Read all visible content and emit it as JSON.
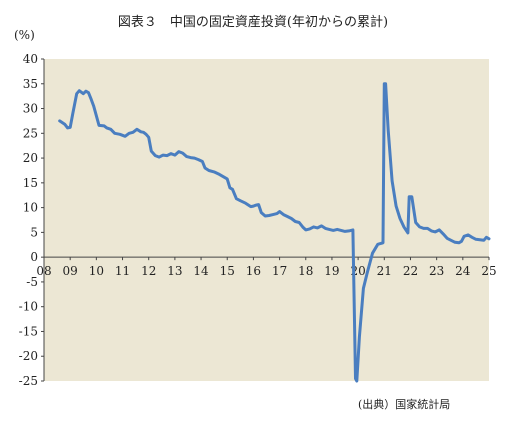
{
  "chart_data": {
    "type": "line",
    "title": "図表３　中国の固定資産投資(年初からの累計)",
    "ylabel": "(%)",
    "source": "(出典）国家統計局",
    "ylim": [
      -25,
      40
    ],
    "xlim": [
      8,
      25
    ],
    "y_ticks": [
      40,
      35,
      30,
      25,
      20,
      15,
      10,
      5,
      0,
      -5,
      -10,
      -15,
      -20,
      -25
    ],
    "x_ticks": [
      {
        "label": "08",
        "value": 8
      },
      {
        "label": "09",
        "value": 9
      },
      {
        "label": "10",
        "value": 10
      },
      {
        "label": "11",
        "value": 11
      },
      {
        "label": "12",
        "value": 12
      },
      {
        "label": "13",
        "value": 13
      },
      {
        "label": "14",
        "value": 14
      },
      {
        "label": "15",
        "value": 15
      },
      {
        "label": "16",
        "value": 16
      },
      {
        "label": "17",
        "value": 17
      },
      {
        "label": "18",
        "value": 18
      },
      {
        "label": "19",
        "value": 19
      },
      {
        "label": "20",
        "value": 20
      },
      {
        "label": "21",
        "value": 21
      },
      {
        "label": "22",
        "value": 22
      },
      {
        "label": "23",
        "value": 23
      },
      {
        "label": "24",
        "value": 24
      },
      {
        "label": "25",
        "value": 25
      }
    ],
    "grid": false,
    "line_color": "#4a7ec0",
    "plot_background": "#ece7d4",
    "series": [
      {
        "x": [
          8.6,
          8.8,
          8.9,
          9.0,
          9.1,
          9.25,
          9.35,
          9.5,
          9.6,
          9.7,
          9.8,
          9.9,
          10.1,
          10.3,
          10.4,
          10.55,
          10.7,
          10.9,
          11.1,
          11.25,
          11.4,
          11.55,
          11.7,
          11.8,
          11.9,
          12.0,
          12.1,
          12.25,
          12.4,
          12.55,
          12.7,
          12.85,
          13.0,
          13.15,
          13.3,
          13.45,
          13.6,
          13.75,
          13.9,
          14.05,
          14.15,
          14.3,
          14.5,
          14.7,
          14.9,
          15.0,
          15.1,
          15.2,
          15.35,
          15.5,
          15.7,
          15.9,
          16.0,
          16.1,
          16.2,
          16.3,
          16.45,
          16.6,
          16.75,
          16.9,
          17.0,
          17.15,
          17.3,
          17.45,
          17.6,
          17.75,
          17.9,
          18.0,
          18.15,
          18.3,
          18.45,
          18.6,
          18.75,
          18.9,
          19.05,
          19.2,
          19.35,
          19.5,
          19.65,
          19.8,
          19.9,
          19.95,
          20.05,
          20.2,
          20.35,
          20.55,
          20.75,
          20.95,
          21.0,
          21.05,
          21.15,
          21.3,
          21.45,
          21.6,
          21.75,
          21.9,
          21.95,
          22.05,
          22.2,
          22.35,
          22.5,
          22.65,
          22.8,
          22.95,
          23.1,
          23.25,
          23.4,
          23.55,
          23.7,
          23.85,
          23.95,
          24.05,
          24.2,
          24.35,
          24.5,
          24.65,
          24.8,
          24.9,
          25.0
        ],
        "y": [
          27.5,
          26.8,
          26.1,
          26.2,
          29.0,
          33.0,
          33.6,
          33.0,
          33.5,
          33.2,
          31.9,
          30.5,
          26.6,
          26.5,
          26.1,
          25.8,
          25.0,
          24.8,
          24.4,
          25.0,
          25.2,
          25.8,
          25.3,
          25.2,
          24.8,
          24.2,
          21.4,
          20.5,
          20.2,
          20.6,
          20.5,
          20.9,
          20.6,
          21.3,
          21.0,
          20.3,
          20.1,
          20.0,
          19.7,
          19.3,
          18.0,
          17.5,
          17.2,
          16.7,
          16.1,
          15.8,
          14.0,
          13.7,
          11.8,
          11.4,
          10.9,
          10.2,
          10.3,
          10.5,
          10.6,
          9.0,
          8.3,
          8.4,
          8.6,
          8.8,
          9.2,
          8.6,
          8.2,
          7.8,
          7.2,
          7.0,
          6.0,
          5.5,
          5.7,
          6.1,
          5.9,
          6.3,
          5.8,
          5.6,
          5.4,
          5.6,
          5.4,
          5.2,
          5.3,
          5.5,
          -24.5,
          -25.0,
          -16.1,
          -6.3,
          -3.1,
          0.8,
          2.6,
          2.9,
          35.0,
          35.0,
          25.6,
          15.4,
          10.3,
          7.8,
          6.1,
          4.9,
          12.2,
          12.2,
          7.0,
          6.1,
          5.8,
          5.8,
          5.3,
          5.1,
          5.5,
          4.7,
          3.8,
          3.4,
          3.0,
          2.9,
          3.2,
          4.2,
          4.5,
          4.0,
          3.6,
          3.5,
          3.4,
          4.0,
          3.7
        ]
      }
    ]
  }
}
